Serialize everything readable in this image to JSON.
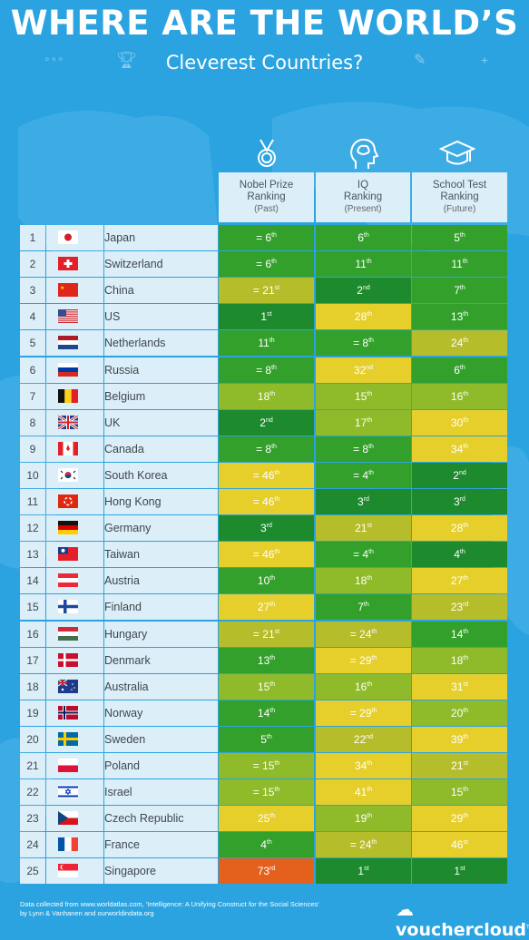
{
  "title_line1": "WHERE ARE THE WORLD’S",
  "title_line2": "Cleverest Countries?",
  "columns": [
    {
      "label": "Nobel Prize Ranking",
      "sub": "(Past)",
      "icon": "medal-icon"
    },
    {
      "label": "IQ Ranking",
      "sub": "(Present)",
      "icon": "brain-head-icon"
    },
    {
      "label": "School Test Ranking",
      "sub": "(Future)",
      "icon": "graduation-cap-icon"
    }
  ],
  "colors": {
    "dkgreen": "#1d8a2e",
    "green": "#33a02c",
    "lime": "#8fba2a",
    "olive": "#b6bd2b",
    "yellow": "#e6cf2b",
    "orange": "#e3601d",
    "background": "#2aa3e0",
    "label_cell": "#dceef8"
  },
  "rows": [
    {
      "rank": "1",
      "country": "Japan",
      "flag": "japan",
      "nobel": [
        "= 6",
        "th",
        "c-green"
      ],
      "iq": [
        "6",
        "th",
        "c-green"
      ],
      "school": [
        "5",
        "th",
        "c-green"
      ]
    },
    {
      "rank": "2",
      "country": "Switzerland",
      "flag": "switzerland",
      "nobel": [
        "= 6",
        "th",
        "c-green"
      ],
      "iq": [
        "11",
        "th",
        "c-green"
      ],
      "school": [
        "11",
        "th",
        "c-green"
      ]
    },
    {
      "rank": "3",
      "country": "China",
      "flag": "china",
      "nobel": [
        "= 21",
        "st",
        "c-olive"
      ],
      "iq": [
        "2",
        "nd",
        "c-dkgreen"
      ],
      "school": [
        "7",
        "th",
        "c-green"
      ]
    },
    {
      "rank": "4",
      "country": "US",
      "flag": "us",
      "nobel": [
        "1",
        "st",
        "c-dkgreen"
      ],
      "iq": [
        "28",
        "th",
        "c-yellow"
      ],
      "school": [
        "13",
        "th",
        "c-green"
      ]
    },
    {
      "rank": "5",
      "country": "Netherlands",
      "flag": "netherlands",
      "nobel": [
        "11",
        "th",
        "c-green"
      ],
      "iq": [
        "= 8",
        "th",
        "c-green"
      ],
      "school": [
        "24",
        "th",
        "c-olive"
      ]
    },
    {
      "rank": "6",
      "country": "Russia",
      "flag": "russia",
      "nobel": [
        "= 8",
        "th",
        "c-green"
      ],
      "iq": [
        "32",
        "nd",
        "c-yellow"
      ],
      "school": [
        "6",
        "th",
        "c-green"
      ]
    },
    {
      "rank": "7",
      "country": "Belgium",
      "flag": "belgium",
      "nobel": [
        "18",
        "th",
        "c-lime"
      ],
      "iq": [
        "15",
        "th",
        "c-lime"
      ],
      "school": [
        "16",
        "th",
        "c-lime"
      ]
    },
    {
      "rank": "8",
      "country": "UK",
      "flag": "uk",
      "nobel": [
        "2",
        "nd",
        "c-dkgreen"
      ],
      "iq": [
        "17",
        "th",
        "c-lime"
      ],
      "school": [
        "30",
        "th",
        "c-yellow"
      ]
    },
    {
      "rank": "9",
      "country": "Canada",
      "flag": "canada",
      "nobel": [
        "= 8",
        "th",
        "c-green"
      ],
      "iq": [
        "= 8",
        "th",
        "c-green"
      ],
      "school": [
        "34",
        "th",
        "c-yellow"
      ]
    },
    {
      "rank": "10",
      "country": "South Korea",
      "flag": "southkorea",
      "nobel": [
        "= 46",
        "th",
        "c-yellow"
      ],
      "iq": [
        "= 4",
        "th",
        "c-green"
      ],
      "school": [
        "2",
        "nd",
        "c-dkgreen"
      ]
    },
    {
      "rank": "11",
      "country": "Hong Kong",
      "flag": "hongkong",
      "nobel": [
        "= 46",
        "th",
        "c-yellow"
      ],
      "iq": [
        "3",
        "rd",
        "c-dkgreen"
      ],
      "school": [
        "3",
        "rd",
        "c-dkgreen"
      ]
    },
    {
      "rank": "12",
      "country": "Germany",
      "flag": "germany",
      "nobel": [
        "3",
        "rd",
        "c-dkgreen"
      ],
      "iq": [
        "21",
        "st",
        "c-olive"
      ],
      "school": [
        "28",
        "th",
        "c-yellow"
      ]
    },
    {
      "rank": "13",
      "country": "Taiwan",
      "flag": "taiwan",
      "nobel": [
        "= 46",
        "th",
        "c-yellow"
      ],
      "iq": [
        "= 4",
        "th",
        "c-green"
      ],
      "school": [
        "4",
        "th",
        "c-dkgreen"
      ]
    },
    {
      "rank": "14",
      "country": "Austria",
      "flag": "austria",
      "nobel": [
        "10",
        "th",
        "c-green"
      ],
      "iq": [
        "18",
        "th",
        "c-lime"
      ],
      "school": [
        "27",
        "th",
        "c-yellow"
      ]
    },
    {
      "rank": "15",
      "country": "Finland",
      "flag": "finland",
      "nobel": [
        "27",
        "th",
        "c-yellow"
      ],
      "iq": [
        "7",
        "th",
        "c-green"
      ],
      "school": [
        "23",
        "rd",
        "c-olive"
      ]
    },
    {
      "rank": "16",
      "country": "Hungary",
      "flag": "hungary",
      "nobel": [
        "= 21",
        "st",
        "c-olive"
      ],
      "iq": [
        "= 24",
        "th",
        "c-olive"
      ],
      "school": [
        "14",
        "th",
        "c-green"
      ]
    },
    {
      "rank": "17",
      "country": "Denmark",
      "flag": "denmark",
      "nobel": [
        "13",
        "th",
        "c-green"
      ],
      "iq": [
        "= 29",
        "th",
        "c-yellow"
      ],
      "school": [
        "18",
        "th",
        "c-lime"
      ]
    },
    {
      "rank": "18",
      "country": "Australia",
      "flag": "australia",
      "nobel": [
        "15",
        "th",
        "c-lime"
      ],
      "iq": [
        "16",
        "th",
        "c-lime"
      ],
      "school": [
        "31",
        "st",
        "c-yellow"
      ]
    },
    {
      "rank": "19",
      "country": "Norway",
      "flag": "norway",
      "nobel": [
        "14",
        "th",
        "c-green"
      ],
      "iq": [
        "= 29",
        "th",
        "c-yellow"
      ],
      "school": [
        "20",
        "th",
        "c-lime"
      ]
    },
    {
      "rank": "20",
      "country": "Sweden",
      "flag": "sweden",
      "nobel": [
        "5",
        "th",
        "c-green"
      ],
      "iq": [
        "22",
        "nd",
        "c-olive"
      ],
      "school": [
        "39",
        "th",
        "c-yellow"
      ]
    },
    {
      "rank": "21",
      "country": "Poland",
      "flag": "poland",
      "nobel": [
        "= 15",
        "th",
        "c-lime"
      ],
      "iq": [
        "34",
        "th",
        "c-yellow"
      ],
      "school": [
        "21",
        "st",
        "c-olive"
      ]
    },
    {
      "rank": "22",
      "country": "Israel",
      "flag": "israel",
      "nobel": [
        "= 15",
        "th",
        "c-lime"
      ],
      "iq": [
        "41",
        "th",
        "c-yellow"
      ],
      "school": [
        "15",
        "th",
        "c-lime"
      ]
    },
    {
      "rank": "23",
      "country": "Czech Republic",
      "flag": "czech",
      "nobel": [
        "25",
        "th",
        "c-yellow"
      ],
      "iq": [
        "19",
        "th",
        "c-lime"
      ],
      "school": [
        "29",
        "th",
        "c-yellow"
      ]
    },
    {
      "rank": "24",
      "country": "France",
      "flag": "france",
      "nobel": [
        "4",
        "th",
        "c-green"
      ],
      "iq": [
        "= 24",
        "th",
        "c-olive"
      ],
      "school": [
        "46",
        "st",
        "c-yellow"
      ]
    },
    {
      "rank": "25",
      "country": "Singapore",
      "flag": "singapore",
      "nobel": [
        "73",
        "rd",
        "c-orange"
      ],
      "iq": [
        "1",
        "st",
        "c-dkgreen"
      ],
      "school": [
        "1",
        "st",
        "c-dkgreen"
      ]
    }
  ],
  "footer": "Data collected from www.worldatlas.com, 'Intelligence: A Unifying Construct for the Social Sciences' by Lynn & Vanhanen and ourworldindata.org",
  "logo": "vouchercloud",
  "logo_tm": "TM"
}
